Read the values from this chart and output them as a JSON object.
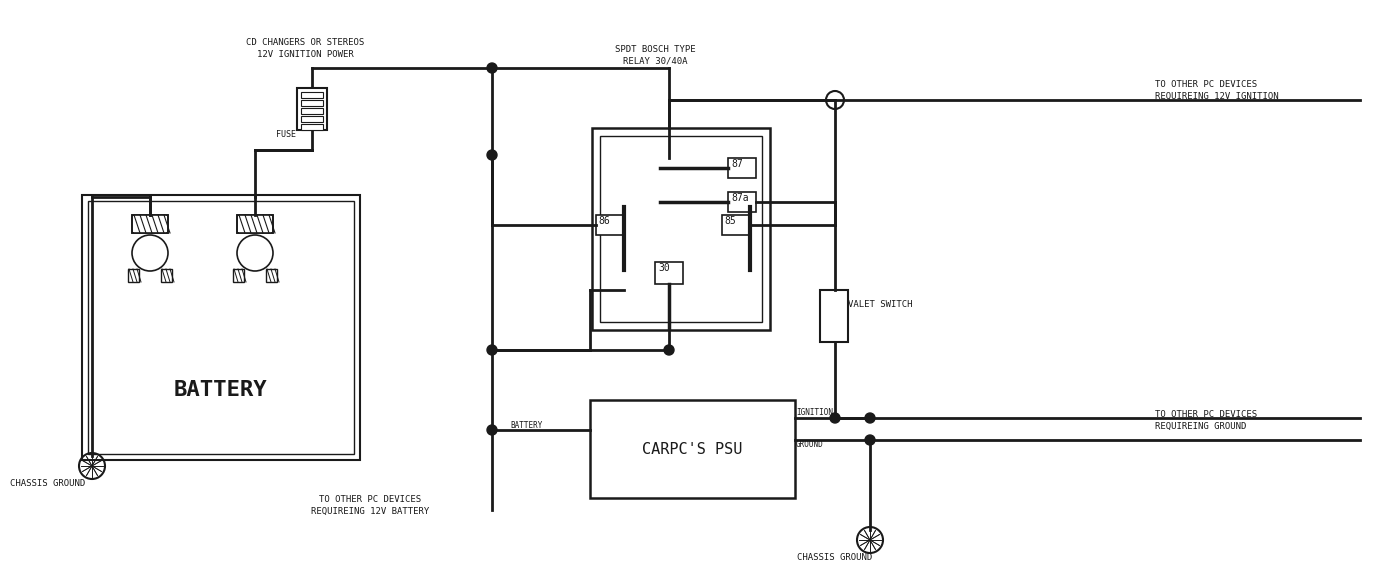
{
  "bg_color": "#ffffff",
  "line_color": "#1a1a1a",
  "labels": {
    "cd_changers": "CD CHANGERS OR STEREOS\n12V IGNITION POWER",
    "spdt": "SPDT BOSCH TYPE\nRELAY 30/40A",
    "to_pc_ignition": "TO OTHER PC DEVICES\nREQUIREING 12V IGNITION",
    "to_pc_battery": "TO OTHER PC DEVICES\nREQUIREING 12V BATTERY",
    "to_pc_ground": "TO OTHER PC DEVICES\nREQUIREING GROUND",
    "chassis_ground1": "CHASSIS GROUND",
    "chassis_ground2": "CHASSIS GROUND",
    "battery": "BATTERY",
    "carpc_psu": "CARPC'S PSU",
    "valet_switch": "VALET SWITCH",
    "fuse": "FUSE",
    "ignition": "IGNITION",
    "ground": "GROUND",
    "bat_label": "BATTERY"
  }
}
